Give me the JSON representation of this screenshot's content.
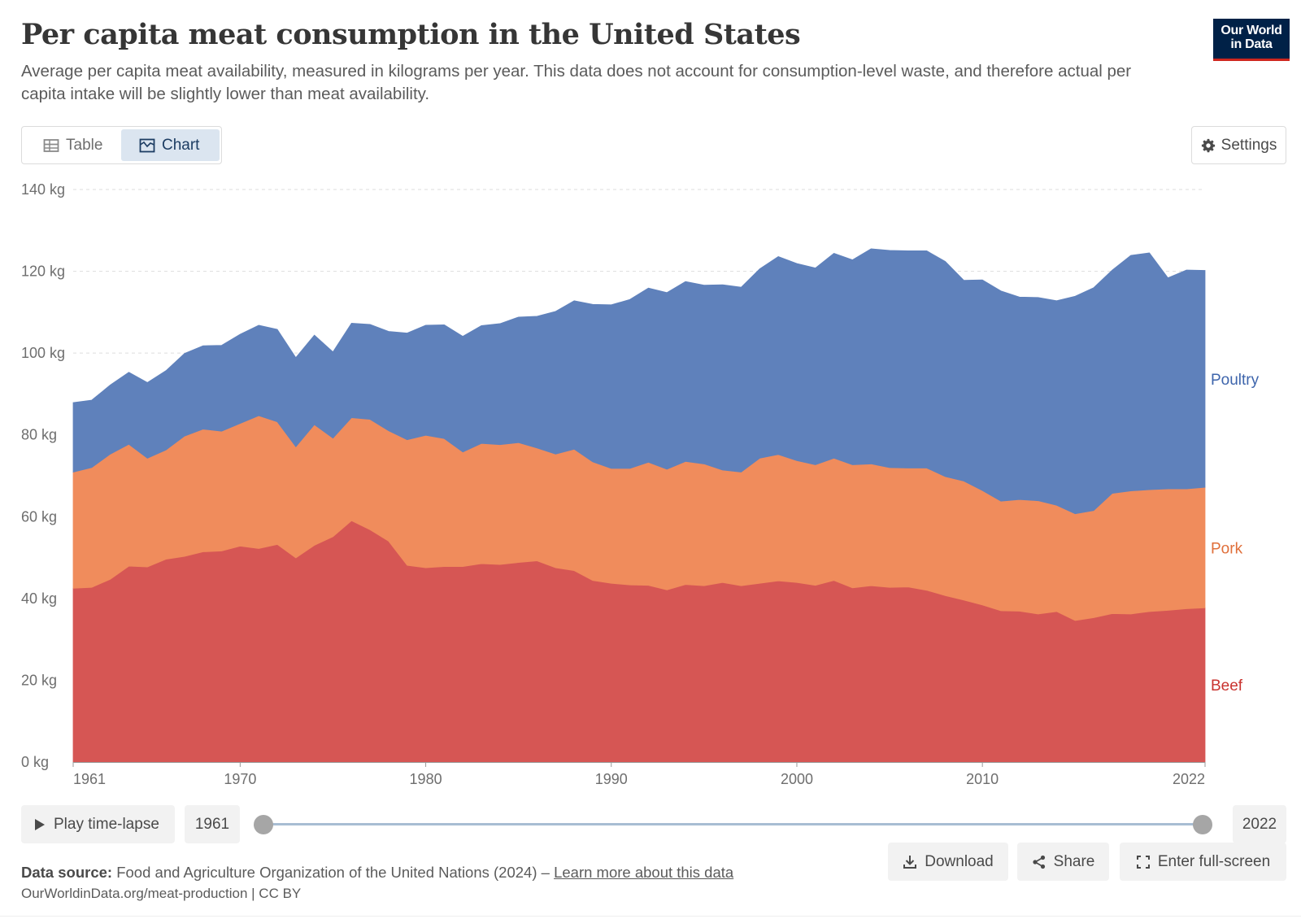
{
  "header": {
    "title": "Per capita meat consumption in the United States",
    "subtitle": "Average per capita meat availability, measured in kilograms per year. This data does not account for consumption-level waste, and therefore actual per capita intake will be slightly lower than meat availability."
  },
  "logo": {
    "line1": "Our World",
    "line2": "in Data"
  },
  "view_toggle": {
    "table_label": "Table",
    "chart_label": "Chart",
    "selected": "Chart"
  },
  "settings_label": "Settings",
  "timeline": {
    "play_label": "Play time-lapse",
    "start_year": "1961",
    "end_year": "2022"
  },
  "footer": {
    "source_label": "Data source:",
    "source_text": "Food and Agriculture Organization of the United Nations (2024) –",
    "learn_more": "Learn more about this data",
    "url": "OurWorldinData.org/meat-production | CC BY"
  },
  "actions": {
    "download": "Download",
    "share": "Share",
    "fullscreen": "Enter full-screen"
  },
  "colors": {
    "beef": "#d65654",
    "pork": "#f08c5c",
    "poultry": "#5f81bb",
    "beef_label": "#c9332f",
    "pork_label": "#e06f3a",
    "poultry_label": "#3e65ac"
  },
  "chart_data": {
    "type": "area",
    "stacked": true,
    "x": [
      1961,
      1962,
      1963,
      1964,
      1965,
      1966,
      1967,
      1968,
      1969,
      1970,
      1971,
      1972,
      1973,
      1974,
      1975,
      1976,
      1977,
      1978,
      1979,
      1980,
      1981,
      1982,
      1983,
      1984,
      1985,
      1986,
      1987,
      1988,
      1989,
      1990,
      1991,
      1992,
      1993,
      1994,
      1995,
      1996,
      1997,
      1998,
      1999,
      2000,
      2001,
      2002,
      2003,
      2004,
      2005,
      2006,
      2007,
      2008,
      2009,
      2010,
      2011,
      2012,
      2013,
      2014,
      2015,
      2016,
      2017,
      2018,
      2019,
      2020,
      2021,
      2022
    ],
    "series": [
      {
        "name": "Beef",
        "values": [
          42.5,
          42.7,
          44.7,
          47.9,
          47.7,
          49.6,
          50.3,
          51.4,
          51.6,
          52.8,
          52.2,
          53.2,
          49.9,
          53.0,
          55.1,
          59.0,
          56.8,
          54.0,
          48.1,
          47.5,
          47.8,
          47.8,
          48.5,
          48.3,
          48.8,
          49.2,
          47.5,
          46.8,
          44.4,
          43.7,
          43.3,
          43.2,
          42.1,
          43.4,
          43.1,
          43.9,
          43.1,
          43.7,
          44.3,
          43.9,
          43.2,
          44.4,
          42.6,
          43.1,
          42.7,
          42.8,
          42.0,
          40.7,
          39.6,
          38.4,
          37.0,
          36.9,
          36.2,
          36.8,
          34.6,
          35.3,
          36.3,
          36.2,
          36.8,
          37.1,
          37.5,
          37.7
        ]
      },
      {
        "name": "Pork",
        "values": [
          28.4,
          29.3,
          30.6,
          29.8,
          26.6,
          26.7,
          29.4,
          30.0,
          29.3,
          30.0,
          32.5,
          30.0,
          27.2,
          29.5,
          24.1,
          25.2,
          27.0,
          27.0,
          30.7,
          32.4,
          31.3,
          28.0,
          29.4,
          29.3,
          29.3,
          27.6,
          27.8,
          29.7,
          29.0,
          28.1,
          28.5,
          30.1,
          29.5,
          30.1,
          29.8,
          27.5,
          27.8,
          30.6,
          30.9,
          29.8,
          29.5,
          29.9,
          30.1,
          29.8,
          29.3,
          29.1,
          29.9,
          29.1,
          29.1,
          28.0,
          26.8,
          27.3,
          27.7,
          26.0,
          26.1,
          26.2,
          29.4,
          30.1,
          29.8,
          29.7,
          29.3,
          29.5
        ]
      },
      {
        "name": "Poultry",
        "values": [
          17.0,
          16.5,
          16.9,
          17.6,
          18.5,
          19.4,
          20.2,
          20.4,
          21.0,
          21.8,
          22.1,
          22.6,
          21.8,
          21.9,
          21.1,
          23.1,
          23.2,
          24.3,
          26.1,
          26.9,
          27.8,
          28.3,
          28.8,
          29.6,
          30.7,
          32.2,
          34.9,
          36.3,
          38.5,
          40.0,
          41.3,
          42.6,
          43.2,
          44.0,
          43.7,
          45.3,
          45.2,
          46.3,
          48.4,
          48.2,
          48.1,
          50.1,
          50.1,
          52.6,
          53.1,
          53.1,
          53.1,
          52.6,
          49.1,
          51.5,
          51.4,
          49.5,
          49.7,
          50.0,
          53.2,
          54.5,
          54.6,
          57.6,
          57.9,
          51.6,
          53.5,
          53.0
        ]
      }
    ],
    "xlim": [
      1961,
      2022
    ],
    "x_ticks": [
      "1961",
      "1970",
      "1980",
      "1990",
      "2000",
      "2010",
      "2022"
    ],
    "ylim": [
      0,
      140
    ],
    "y_ticks": [
      "0 kg",
      "20 kg",
      "40 kg",
      "60 kg",
      "80 kg",
      "100 kg",
      "120 kg",
      "140 kg"
    ],
    "grid": "horizontal dashed",
    "legend": "inline right of series"
  }
}
